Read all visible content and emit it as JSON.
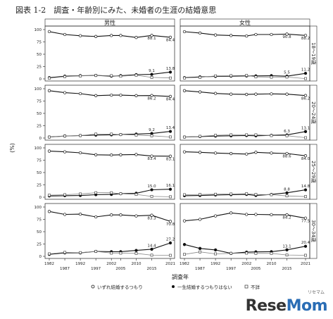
{
  "figure": {
    "title": "図表 1-2　調査・年齢別にみた、未婚者の生涯の結婚意思",
    "xlabel": "調査年",
    "ylabel": "(%)",
    "col_headers": [
      "男性",
      "女性"
    ],
    "row_headers": [
      "18〜19歳",
      "20〜24歳",
      "25〜29歳",
      "30〜34歳"
    ],
    "legend": [
      {
        "label": "いずれ結婚するつもり",
        "marker": "open-circle"
      },
      {
        "label": "一生結婚するつもりはない",
        "marker": "filled-circle"
      },
      {
        "label": "不詳",
        "marker": "square"
      }
    ]
  },
  "logo": {
    "text_main": "Rese",
    "text_accent": "Mom",
    "kana": "リセマム"
  },
  "chart_data": {
    "type": "line",
    "x": [
      1982,
      1987,
      1992,
      1997,
      2002,
      2005,
      2010,
      2015,
      2021
    ],
    "x_ticks_top": [
      1982,
      1992,
      2002,
      2010,
      2021
    ],
    "x_ticks_bottom": [
      1987,
      1997,
      2005,
      2015
    ],
    "y_ticks": [
      0,
      25,
      50,
      75,
      100
    ],
    "ylim": [
      0,
      100
    ],
    "panels": [
      {
        "sex": "男性",
        "age": "18〜19歳",
        "series": [
          {
            "name": "いずれ結婚するつもり",
            "values": [
              95.9,
              90.0,
              87.5,
              86.0,
              88.0,
              88.0,
              84.0,
              88.1,
              84.4
            ]
          },
          {
            "name": "一生結婚するつもりはない",
            "values": [
              2.5,
              5.5,
              6.5,
              7.0,
              5.5,
              6.5,
              8.5,
              9.1,
              13.8
            ]
          },
          {
            "name": "不詳",
            "values": [
              1.5,
              4.5,
              6.0,
              7.0,
              6.5,
              5.5,
              7.5,
              3.0,
              1.8
            ]
          }
        ],
        "labels": [
          "88.1",
          "84.4",
          "9.1",
          "13.8"
        ]
      },
      {
        "sex": "女性",
        "age": "18〜19歳",
        "series": [
          {
            "name": "いずれ結婚するつもり",
            "values": [
              95.7,
              93.0,
              89.0,
              88.0,
              87.0,
              90.0,
              90.0,
              90.8,
              88.2
            ]
          },
          {
            "name": "一生結婚するつもりはない",
            "values": [
              2.5,
              4.0,
              5.0,
              5.5,
              6.0,
              6.0,
              6.5,
              5.5,
              11.2
            ]
          },
          {
            "name": "不詳",
            "values": [
              1.8,
              3.0,
              6.0,
              6.5,
              7.0,
              4.0,
              3.5,
              3.7,
              0.6
            ]
          }
        ],
        "labels": [
          "90.8",
          "88.2",
          "5.5",
          "11.2"
        ]
      },
      {
        "sex": "男性",
        "age": "20〜24歳",
        "series": [
          {
            "name": "いずれ結婚するつもり",
            "values": [
              96.0,
              92.0,
              90.0,
              86.0,
              87.0,
              87.0,
              86.0,
              86.2,
              84.4
            ]
          },
          {
            "name": "一生結婚するつもりはない",
            "values": [
              2.0,
              4.0,
              5.0,
              6.0,
              6.5,
              7.0,
              8.0,
              9.2,
              13.4
            ]
          },
          {
            "name": "不詳",
            "values": [
              2.0,
              4.0,
              5.0,
              8.0,
              8.0,
              7.0,
              6.0,
              4.6,
              2.2
            ]
          }
        ],
        "labels": [
          "86.2",
          "84.4",
          "9.2",
          "13.4"
        ]
      },
      {
        "sex": "女性",
        "age": "20〜24歳",
        "series": [
          {
            "name": "いずれ結婚するつもり",
            "values": [
              96.0,
              93.5,
              90.5,
              89.0,
              88.5,
              89.0,
              89.5,
              89.0,
              86.2
            ]
          },
          {
            "name": "一生結婚するつもりはない",
            "values": [
              2.0,
              3.0,
              4.0,
              4.5,
              5.0,
              4.5,
              5.5,
              6.3,
              13.1
            ]
          },
          {
            "name": "不詳",
            "values": [
              2.0,
              3.5,
              5.5,
              6.5,
              6.5,
              6.5,
              5.0,
              4.7,
              0.7
            ]
          }
        ],
        "labels": [
          "6.3",
          "86.2",
          "13.1"
        ]
      },
      {
        "sex": "男性",
        "age": "25〜29歳",
        "series": [
          {
            "name": "いずれ結婚するつもり",
            "values": [
              93.5,
              92.0,
              90.0,
              86.0,
              85.5,
              86.0,
              86.5,
              83.4,
              83.1
            ]
          },
          {
            "name": "一生結婚するつもりはない",
            "values": [
              2.5,
              3.0,
              3.5,
              5.0,
              5.5,
              7.0,
              8.0,
              15.0,
              16.1
            ]
          },
          {
            "name": "不詳",
            "values": [
              4.0,
              5.0,
              6.5,
              9.0,
              9.0,
              7.0,
              5.5,
              1.6,
              0.8
            ]
          }
        ],
        "labels": [
          "83.4",
          "83.1",
          "15.0",
          "16.1"
        ]
      },
      {
        "sex": "女性",
        "age": "25〜29歳",
        "series": [
          {
            "name": "いずれ結婚するつもり",
            "values": [
              92.0,
              91.0,
              89.5,
              88.5,
              87.5,
              91.0,
              89.5,
              88.6,
              84.0
            ]
          },
          {
            "name": "一生結婚するつもりはない",
            "values": [
              3.0,
              3.5,
              4.5,
              5.0,
              5.5,
              3.5,
              5.5,
              8.8,
              14.8
            ]
          },
          {
            "name": "不詳",
            "values": [
              5.0,
              5.5,
              6.0,
              6.5,
              7.0,
              5.5,
              5.0,
              2.6,
              1.2
            ]
          }
        ],
        "labels": [
          "88.6",
          "84.0",
          "8.8",
          "14.8"
        ]
      },
      {
        "sex": "男性",
        "age": "30〜34歳",
        "series": [
          {
            "name": "いずれ結婚するつもり",
            "values": [
              91.0,
              85.0,
              85.5,
              80.0,
              84.0,
              84.0,
              82.0,
              83.3,
              70.8
            ]
          },
          {
            "name": "一生結婚するつもりはない",
            "values": [
              4.0,
              7.0,
              7.0,
              10.0,
              9.5,
              9.5,
              12.0,
              14.4,
              27.2
            ]
          },
          {
            "name": "不詳",
            "values": [
              5.0,
              8.0,
              7.5,
              10.0,
              6.5,
              6.5,
              6.0,
              2.3,
              2.0
            ]
          }
        ],
        "labels": [
          "83.3",
          "70.8",
          "14.4",
          "27.2"
        ]
      },
      {
        "sex": "女性",
        "age": "30〜34歳",
        "series": [
          {
            "name": "いずれ結婚するつもり",
            "values": [
              72.0,
              75.0,
              82.0,
              88.0,
              85.0,
              85.0,
              84.5,
              84.2,
              77.5
            ]
          },
          {
            "name": "一生結婚するつもりはない",
            "values": [
              24.0,
              16.0,
              13.0,
              6.0,
              8.5,
              9.0,
              9.5,
              13.1,
              20.4
            ]
          },
          {
            "name": "不詳",
            "values": [
              4.0,
              9.0,
              5.0,
              6.0,
              6.5,
              6.0,
              6.0,
              2.7,
              2.1
            ]
          }
        ],
        "labels": [
          "84.2",
          "77.5",
          "13.1",
          "20.4"
        ]
      }
    ]
  }
}
